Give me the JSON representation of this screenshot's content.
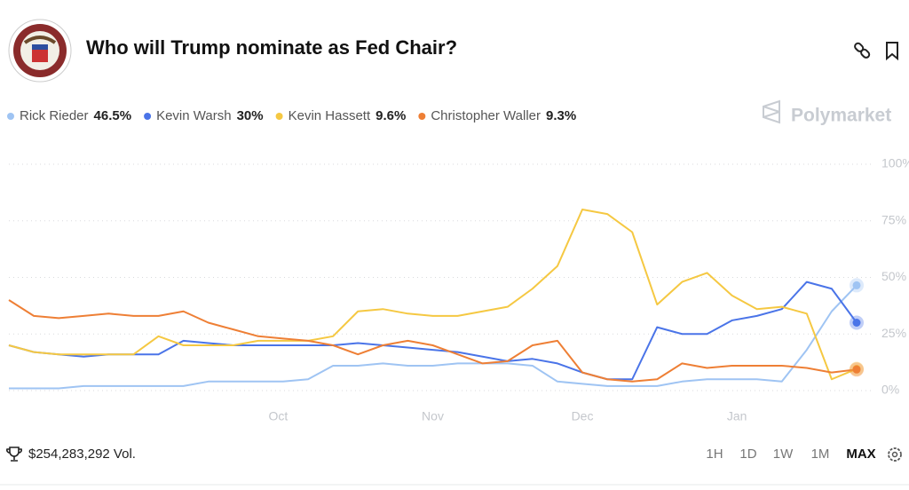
{
  "header": {
    "title": "Who will Trump nominate as Fed Chair?"
  },
  "brand": "Polymarket",
  "chart_data": {
    "type": "line",
    "x": [
      0,
      5,
      10,
      15,
      20,
      25,
      30,
      35,
      40,
      45,
      50,
      55,
      60,
      65,
      70,
      75,
      80,
      85,
      90,
      95,
      100,
      105,
      110,
      115,
      120,
      125,
      130,
      135,
      140,
      145,
      150,
      155,
      160,
      165,
      170
    ],
    "xlim": [
      0,
      170
    ],
    "xticks": [
      {
        "value": 54,
        "label": "Oct"
      },
      {
        "value": 85,
        "label": "Nov"
      },
      {
        "value": 115,
        "label": "Dec"
      },
      {
        "value": 146,
        "label": "Jan"
      }
    ],
    "ylim": [
      0,
      100
    ],
    "yticks": [
      {
        "value": 0,
        "label": "0%"
      },
      {
        "value": 25,
        "label": "25%"
      },
      {
        "value": 50,
        "label": "50%"
      },
      {
        "value": 75,
        "label": "75%"
      },
      {
        "value": 100,
        "label": "100%"
      }
    ],
    "grid": true,
    "series": [
      {
        "name": "Rick Rieder",
        "color": "#9fc4f3",
        "current_label": "46.5%",
        "values": [
          1,
          1,
          1,
          2,
          2,
          2,
          2,
          2,
          4,
          4,
          4,
          4,
          5,
          11,
          11,
          12,
          11,
          11,
          12,
          12,
          12,
          11,
          4,
          3,
          2,
          2,
          2,
          4,
          5,
          5,
          5,
          4,
          18,
          35,
          46.5
        ]
      },
      {
        "name": "Kevin Warsh",
        "color": "#4a74e8",
        "current_label": "30%",
        "values": [
          20,
          17,
          16,
          15,
          16,
          16,
          16,
          22,
          21,
          20,
          20,
          20,
          20,
          20,
          21,
          20,
          19,
          18,
          17,
          15,
          13,
          14,
          12,
          8,
          5,
          5,
          28,
          25,
          25,
          31,
          33,
          36,
          48,
          45,
          30
        ]
      },
      {
        "name": "Kevin Hassett",
        "color": "#f5c842",
        "current_label": "9.6%",
        "values": [
          20,
          17,
          16,
          16,
          16,
          16,
          24,
          20,
          20,
          20,
          22,
          22,
          22,
          24,
          35,
          36,
          34,
          33,
          33,
          35,
          37,
          45,
          55,
          80,
          78,
          70,
          38,
          48,
          52,
          42,
          36,
          37,
          34,
          5,
          9.6
        ]
      },
      {
        "name": "Christopher Waller",
        "color": "#ee7f35",
        "current_label": "9.3%",
        "values": [
          40,
          33,
          32,
          33,
          34,
          33,
          33,
          35,
          30,
          27,
          24,
          23,
          22,
          20,
          16,
          20,
          22,
          20,
          16,
          12,
          13,
          20,
          22,
          8,
          5,
          4,
          5,
          12,
          10,
          11,
          11,
          11,
          10,
          8,
          9.3
        ]
      }
    ]
  },
  "footer": {
    "volume": "$254,283,292 Vol.",
    "ranges": [
      "1H",
      "1D",
      "1W",
      "1M",
      "MAX"
    ]
  }
}
